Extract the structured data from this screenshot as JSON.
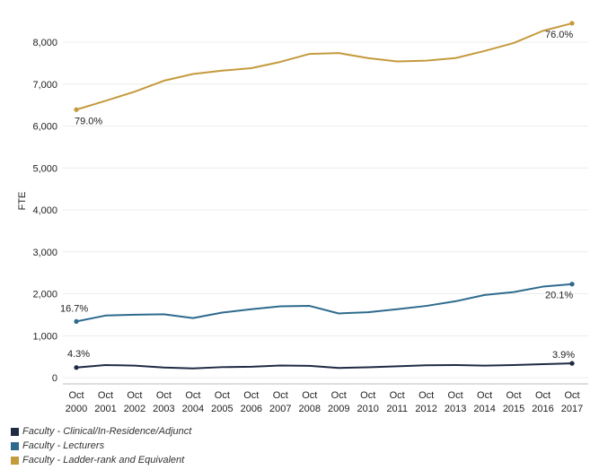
{
  "chart_data": {
    "type": "line",
    "ylabel": "FTE",
    "ylim": [
      0,
      8500
    ],
    "yticks": [
      0,
      1000,
      2000,
      3000,
      4000,
      5000,
      6000,
      7000,
      8000
    ],
    "ytick_labels": [
      "0",
      "1,000",
      "2,000",
      "3,000",
      "4,000",
      "5,000",
      "6,000",
      "7,000",
      "8,000"
    ],
    "x": [
      2000,
      2001,
      2002,
      2003,
      2004,
      2005,
      2006,
      2007,
      2008,
      2009,
      2010,
      2011,
      2012,
      2013,
      2014,
      2015,
      2016,
      2017
    ],
    "x_labels_top": [
      "Oct",
      "Oct",
      "Oct",
      "Oct",
      "Oct",
      "Oct",
      "Oct",
      "Oct",
      "Oct",
      "Oct",
      "Oct",
      "Oct",
      "Oct",
      "Oct",
      "Oct",
      "Oct",
      "Oct",
      "Oct"
    ],
    "x_labels_bottom": [
      "2000",
      "2001",
      "2002",
      "2003",
      "2004",
      "2005",
      "2006",
      "2007",
      "2008",
      "2009",
      "2010",
      "2011",
      "2012",
      "2013",
      "2014",
      "2015",
      "2016",
      "2017"
    ],
    "grid": "horizontal",
    "legend_position": "bottom-left",
    "series": [
      {
        "name": "Faculty - Ladder-rank and Equivalent",
        "color": "#c49a3c",
        "values": [
          6390,
          6600,
          6820,
          7080,
          7240,
          7320,
          7380,
          7530,
          7720,
          7740,
          7620,
          7540,
          7560,
          7620,
          7790,
          7980,
          8270,
          8450
        ],
        "start_label": "79.0%",
        "end_label": "76.0%"
      },
      {
        "name": "Faculty - Lecturers",
        "color": "#2e6a8e",
        "values": [
          1340,
          1480,
          1500,
          1510,
          1420,
          1550,
          1630,
          1700,
          1710,
          1530,
          1560,
          1630,
          1710,
          1820,
          1970,
          2040,
          2170,
          2230
        ],
        "start_label": "16.7%",
        "end_label": "20.1%"
      },
      {
        "name": "Faculty - Clinical/In-Residence/Adjunct",
        "color": "#1f2a44",
        "values": [
          240,
          300,
          285,
          240,
          220,
          250,
          260,
          290,
          280,
          230,
          245,
          270,
          295,
          300,
          285,
          300,
          320,
          340
        ],
        "start_label": "4.3%",
        "end_label": "3.9%"
      }
    ]
  },
  "legend": {
    "items": [
      {
        "label": "Faculty - Clinical/In-Residence/Adjunct",
        "color": "#1f2a44"
      },
      {
        "label": "Faculty - Lecturers",
        "color": "#2e6a8e"
      },
      {
        "label": "Faculty - Ladder-rank and Equivalent",
        "color": "#c49a3c"
      }
    ]
  }
}
